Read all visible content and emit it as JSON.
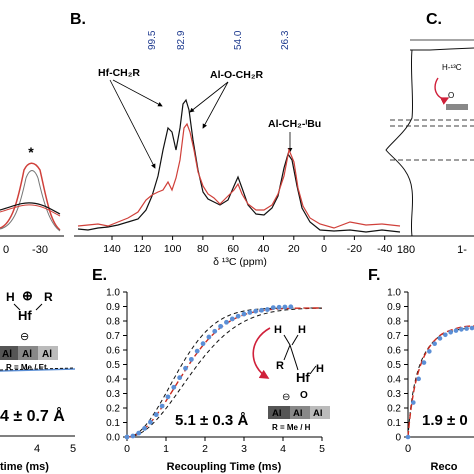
{
  "panels": {
    "A": {
      "axis_ticks": [
        "0",
        "-30"
      ],
      "marker": "*"
    },
    "B": {
      "label": "B.",
      "peak_labels": [
        "99.5",
        "82.9",
        "54.0",
        "26.3"
      ],
      "ann_hf": "Hf-CH₂R",
      "ann_alo": "Al-O-CH₂R",
      "ann_albu": "Al-CH₂-ᴵBu",
      "x_ticks": [
        "140",
        "120",
        "100",
        "80",
        "60",
        "40",
        "20",
        "0",
        "-20",
        "-40"
      ],
      "xlabel": "δ ¹³C (ppm)",
      "colors": {
        "black": "#111111",
        "red": "#d0403a"
      }
    },
    "C": {
      "label": "C.",
      "x_ticks": [
        "180",
        "1-"
      ],
      "mol_label": "H-¹³C",
      "mol_o": "O"
    },
    "D": {
      "struct_h": "H",
      "struct_r": "R",
      "struct_hf": "Hf",
      "struct_plus": "⊕",
      "struct_minus": "⊖",
      "surface": [
        "Al",
        "Al",
        "Al"
      ],
      "r_def": "R = Me / Et",
      "distance": "4 ± 0.7 Å",
      "x_ticks": [
        "4",
        "5"
      ],
      "xlabel": "time (ms)"
    },
    "E": {
      "label": "E.",
      "y_ticks": [
        "1.0",
        "0.9",
        "0.8",
        "0.7",
        "0.6",
        "0.5",
        "0.4",
        "0.3",
        "0.2",
        "0.1",
        "0.0"
      ],
      "x_ticks": [
        "0",
        "1",
        "2",
        "3",
        "4",
        "5"
      ],
      "xlabel": "Recoupling Time (ms)",
      "distance": "5.1 ± 0.3 Å",
      "struct_h1": "H",
      "struct_h2": "H",
      "struct_r": "R",
      "struct_hf": "Hf",
      "struct_h3": "H",
      "struct_o": "O",
      "struct_minus": "⊖",
      "surface": [
        "Al",
        "Al",
        "Al"
      ],
      "r_def": "R = Me / H",
      "colors": {
        "points": "#5b8fd6",
        "fit": "#cc2a1e",
        "bounds": "#111111"
      }
    },
    "F": {
      "label": "F.",
      "y_ticks": [
        "1.0",
        "0.9",
        "0.8",
        "0.7",
        "0.6",
        "0.5",
        "0.4",
        "0.3",
        "0.2",
        "0.1",
        "0"
      ],
      "x_ticks": [
        "0"
      ],
      "xlabel": "Reco",
      "distance": "1.9 ± 0"
    }
  }
}
